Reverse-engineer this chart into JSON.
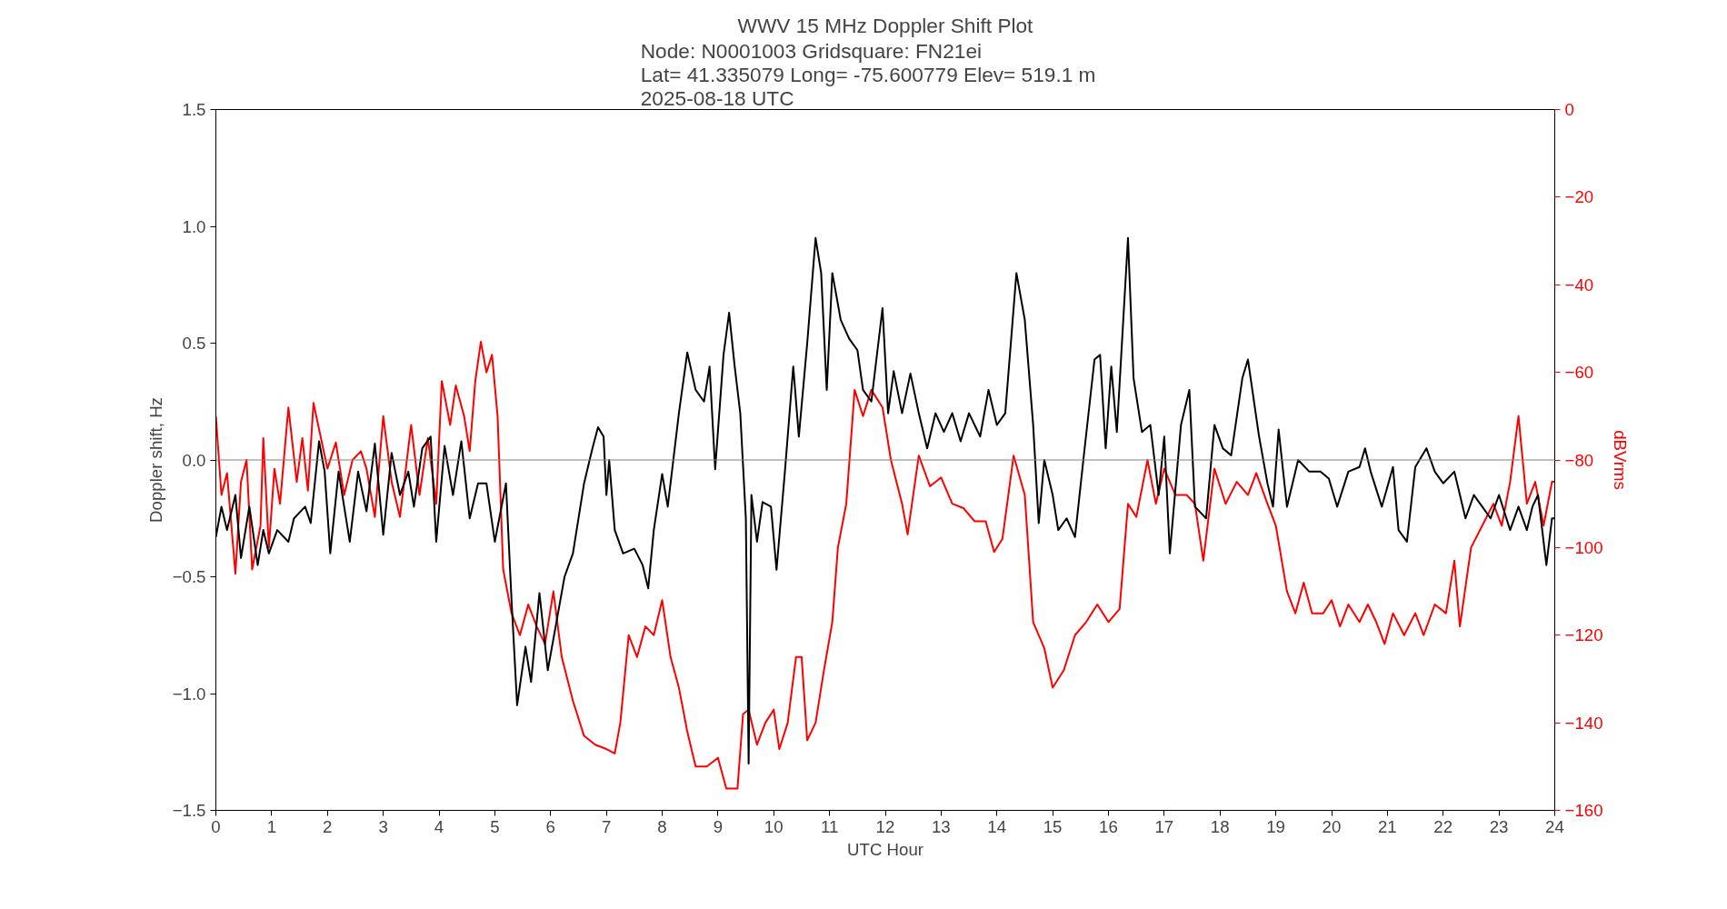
{
  "chart_data": {
    "type": "line",
    "title": "WWV 15 MHz Doppler Shift Plot",
    "subtitle": "Node:  N0001003     Gridsquare:  FN21ei\nLat= 41.335079    Long= -75.600779    Elev= 519.1 m\n2025-08-18  UTC",
    "xlabel": "UTC Hour",
    "ylabel": "Doppler shift, Hz",
    "y2label": "dBVrms",
    "xlim": [
      0,
      24
    ],
    "xticks": [
      0,
      1,
      2,
      3,
      4,
      5,
      6,
      7,
      8,
      9,
      10,
      11,
      12,
      13,
      14,
      15,
      16,
      17,
      18,
      19,
      20,
      21,
      22,
      23,
      24
    ],
    "ylim": [
      -1.5,
      1.5
    ],
    "yticks": [
      {
        "value": -1.5,
        "label": "−1.5"
      },
      {
        "value": -1.0,
        "label": "−1.0"
      },
      {
        "value": -0.5,
        "label": "−0.5"
      },
      {
        "value": 0,
        "label": "0.0"
      },
      0.5,
      {
        "value": 1.0,
        "label": "1.0"
      },
      1.5
    ],
    "y2lim": [
      -160,
      0
    ],
    "y2ticks": [
      {
        "value": -160,
        "label": "−160"
      },
      {
        "value": -140,
        "label": "−140"
      },
      {
        "value": -120,
        "label": "−120"
      },
      {
        "value": -100,
        "label": "−100"
      },
      {
        "value": -80,
        "label": "−80"
      },
      {
        "value": -60,
        "label": "−60"
      },
      {
        "value": -40,
        "label": "−40"
      },
      {
        "value": -20,
        "label": "−20"
      },
      0
    ],
    "ref_lines": [
      {
        "axis": "y",
        "value": 0,
        "color": "#808080"
      }
    ],
    "series": [
      {
        "color": "#ff0000",
        "axis": "y2",
        "x": [
          0,
          0.1,
          0.2,
          0.35,
          0.45,
          0.55,
          0.65,
          0.8,
          0.85,
          0.95,
          1.05,
          1.15,
          1.3,
          1.45,
          1.55,
          1.65,
          1.75,
          1.85,
          2.0,
          2.15,
          2.3,
          2.45,
          2.6,
          2.7,
          2.85,
          3.0,
          3.15,
          3.3,
          3.5,
          3.65,
          3.8,
          3.95,
          4.05,
          4.2,
          4.3,
          4.45,
          4.55,
          4.65,
          4.75,
          4.85,
          4.95,
          5.05,
          5.15,
          5.3,
          5.45,
          5.6,
          5.75,
          5.9,
          6.05,
          6.2,
          6.4,
          6.6,
          6.8,
          7.0,
          7.15,
          7.25,
          7.4,
          7.55,
          7.7,
          7.85,
          8.0,
          8.15,
          8.3,
          8.45,
          8.6,
          8.8,
          9.0,
          9.15,
          9.35,
          9.45,
          9.55,
          9.7,
          9.85,
          10.0,
          10.1,
          10.25,
          10.4,
          10.5,
          10.6,
          10.75,
          10.9,
          11.05,
          11.15,
          11.3,
          11.45,
          11.6,
          11.75,
          11.95,
          12.1,
          12.3,
          12.4,
          12.6,
          12.8,
          13.0,
          13.2,
          13.4,
          13.6,
          13.8,
          13.95,
          14.1,
          14.3,
          14.5,
          14.65,
          14.85,
          15.0,
          15.2,
          15.4,
          15.6,
          15.8,
          16.0,
          16.2,
          16.35,
          16.5,
          16.7,
          16.85,
          17.0,
          17.2,
          17.4,
          17.55,
          17.7,
          17.9,
          18.1,
          18.3,
          18.5,
          18.65,
          18.85,
          19.0,
          19.2,
          19.35,
          19.5,
          19.65,
          19.85,
          20.0,
          20.15,
          20.3,
          20.5,
          20.65,
          20.8,
          20.95,
          21.1,
          21.3,
          21.5,
          21.65,
          21.85,
          22.05,
          22.2,
          22.3,
          22.5,
          22.7,
          22.9,
          23.05,
          23.2,
          23.35,
          23.5,
          23.65,
          23.8,
          23.95,
          24
        ],
        "values": [
          -70,
          -88,
          -83,
          -106,
          -85,
          -80,
          -105,
          -95,
          -75,
          -100,
          -82,
          -90,
          -68,
          -85,
          -75,
          -87,
          -67,
          -73,
          -82,
          -76,
          -88,
          -80,
          -78,
          -82,
          -93,
          -70,
          -85,
          -93,
          -72,
          -88,
          -75,
          -90,
          -62,
          -72,
          -63,
          -70,
          -78,
          -62,
          -53,
          -60,
          -56,
          -70,
          -105,
          -115,
          -120,
          -113,
          -118,
          -122,
          -110,
          -125,
          -135,
          -143,
          -145,
          -146,
          -147,
          -140,
          -120,
          -125,
          -118,
          -120,
          -112,
          -125,
          -132,
          -142,
          -150,
          -150,
          -148,
          -155,
          -155,
          -138,
          -137,
          -145,
          -140,
          -137,
          -146,
          -140,
          -125,
          -125,
          -144,
          -140,
          -128,
          -117,
          -100,
          -90,
          -64,
          -70,
          -64,
          -68,
          -80,
          -90,
          -97,
          -79,
          -86,
          -84,
          -90,
          -91,
          -94,
          -94,
          -101,
          -98,
          -79,
          -88,
          -117,
          -123,
          -132,
          -128,
          -120,
          -117,
          -113,
          -117,
          -114,
          -90,
          -93,
          -80,
          -90,
          -82,
          -88,
          -88,
          -90,
          -103,
          -82,
          -90,
          -85,
          -88,
          -83,
          -90,
          -95,
          -110,
          -115,
          -108,
          -115,
          -115,
          -112,
          -118,
          -113,
          -117,
          -113,
          -117,
          -122,
          -115,
          -120,
          -115,
          -120,
          -113,
          -115,
          -103,
          -118,
          -100,
          -95,
          -90,
          -95,
          -85,
          -70,
          -90,
          -85,
          -95,
          -85,
          -85
        ]
      },
      {
        "color": "#000000",
        "x": [
          0,
          0.1,
          0.2,
          0.35,
          0.45,
          0.6,
          0.75,
          0.85,
          0.95,
          1.1,
          1.3,
          1.4,
          1.6,
          1.7,
          1.85,
          1.95,
          2.05,
          2.2,
          2.4,
          2.55,
          2.7,
          2.85,
          3.0,
          3.15,
          3.3,
          3.45,
          3.55,
          3.7,
          3.85,
          3.95,
          4.1,
          4.25,
          4.4,
          4.55,
          4.7,
          4.85,
          5.0,
          5.2,
          5.3,
          5.4,
          5.55,
          5.65,
          5.8,
          5.95,
          6.1,
          6.25,
          6.4,
          6.6,
          6.75,
          6.85,
          6.95,
          7.0,
          7.05,
          7.15,
          7.3,
          7.5,
          7.65,
          7.75,
          7.85,
          8.0,
          8.1,
          8.3,
          8.45,
          8.6,
          8.75,
          8.85,
          8.95,
          9.1,
          9.2,
          9.3,
          9.4,
          9.5,
          9.55,
          9.6,
          9.7,
          9.8,
          9.95,
          10.05,
          10.2,
          10.35,
          10.45,
          10.6,
          10.75,
          10.85,
          10.95,
          11.05,
          11.2,
          11.35,
          11.5,
          11.6,
          11.75,
          11.95,
          12.05,
          12.15,
          12.3,
          12.45,
          12.6,
          12.75,
          12.9,
          13.05,
          13.2,
          13.35,
          13.5,
          13.7,
          13.85,
          14.0,
          14.15,
          14.35,
          14.5,
          14.65,
          14.75,
          14.85,
          15.0,
          15.1,
          15.25,
          15.4,
          15.55,
          15.75,
          15.85,
          15.95,
          16.05,
          16.15,
          16.35,
          16.45,
          16.6,
          16.75,
          16.9,
          17.0,
          17.1,
          17.3,
          17.45,
          17.55,
          17.75,
          17.9,
          18.05,
          18.2,
          18.4,
          18.5,
          18.7,
          18.85,
          18.95,
          19.05,
          19.2,
          19.4,
          19.6,
          19.8,
          19.95,
          20.1,
          20.3,
          20.5,
          20.6,
          20.7,
          20.9,
          21.1,
          21.2,
          21.35,
          21.5,
          21.7,
          21.85,
          22.0,
          22.2,
          22.4,
          22.55,
          22.7,
          22.85,
          23.0,
          23.2,
          23.35,
          23.5,
          23.6,
          23.7,
          23.85,
          23.95,
          24
        ],
        "values": [
          -0.33,
          -0.2,
          -0.3,
          -0.15,
          -0.42,
          -0.2,
          -0.45,
          -0.3,
          -0.4,
          -0.3,
          -0.35,
          -0.25,
          -0.2,
          -0.27,
          0.08,
          -0.05,
          -0.4,
          -0.05,
          -0.35,
          -0.05,
          -0.22,
          0.07,
          -0.32,
          0.03,
          -0.15,
          -0.05,
          -0.2,
          0.05,
          0.1,
          -0.35,
          0.06,
          -0.15,
          0.08,
          -0.25,
          -0.1,
          -0.1,
          -0.35,
          -0.1,
          -0.6,
          -1.05,
          -0.8,
          -0.95,
          -0.57,
          -0.9,
          -0.7,
          -0.5,
          -0.4,
          -0.1,
          0.05,
          0.14,
          0.1,
          -0.15,
          0.0,
          -0.3,
          -0.4,
          -0.38,
          -0.45,
          -0.55,
          -0.3,
          -0.06,
          -0.2,
          0.2,
          0.46,
          0.3,
          0.25,
          0.4,
          -0.04,
          0.45,
          0.63,
          0.4,
          0.2,
          -0.25,
          -1.3,
          -0.15,
          -0.35,
          -0.18,
          -0.2,
          -0.47,
          -0.05,
          0.4,
          0.1,
          0.5,
          0.95,
          0.8,
          0.3,
          0.8,
          0.6,
          0.52,
          0.47,
          0.3,
          0.25,
          0.65,
          0.2,
          0.38,
          0.2,
          0.37,
          0.2,
          0.05,
          0.2,
          0.12,
          0.2,
          0.08,
          0.2,
          0.1,
          0.3,
          0.15,
          0.2,
          0.8,
          0.6,
          0.15,
          -0.27,
          0.0,
          -0.15,
          -0.3,
          -0.25,
          -0.33,
          0.0,
          0.43,
          0.45,
          0.05,
          0.4,
          0.12,
          0.95,
          0.35,
          0.12,
          0.15,
          -0.15,
          0.1,
          -0.4,
          0.15,
          0.3,
          -0.2,
          -0.25,
          0.15,
          0.05,
          0.02,
          0.35,
          0.43,
          0.1,
          -0.1,
          -0.2,
          0.13,
          -0.2,
          0.0,
          -0.05,
          -0.05,
          -0.08,
          -0.2,
          -0.05,
          -0.03,
          0.05,
          -0.05,
          -0.2,
          -0.03,
          -0.3,
          -0.35,
          -0.03,
          0.05,
          -0.05,
          -0.1,
          -0.05,
          -0.25,
          -0.15,
          -0.2,
          -0.25,
          -0.15,
          -0.3,
          -0.2,
          -0.3,
          -0.2,
          -0.15,
          -0.45,
          -0.25,
          -0.25
        ]
      }
    ]
  }
}
